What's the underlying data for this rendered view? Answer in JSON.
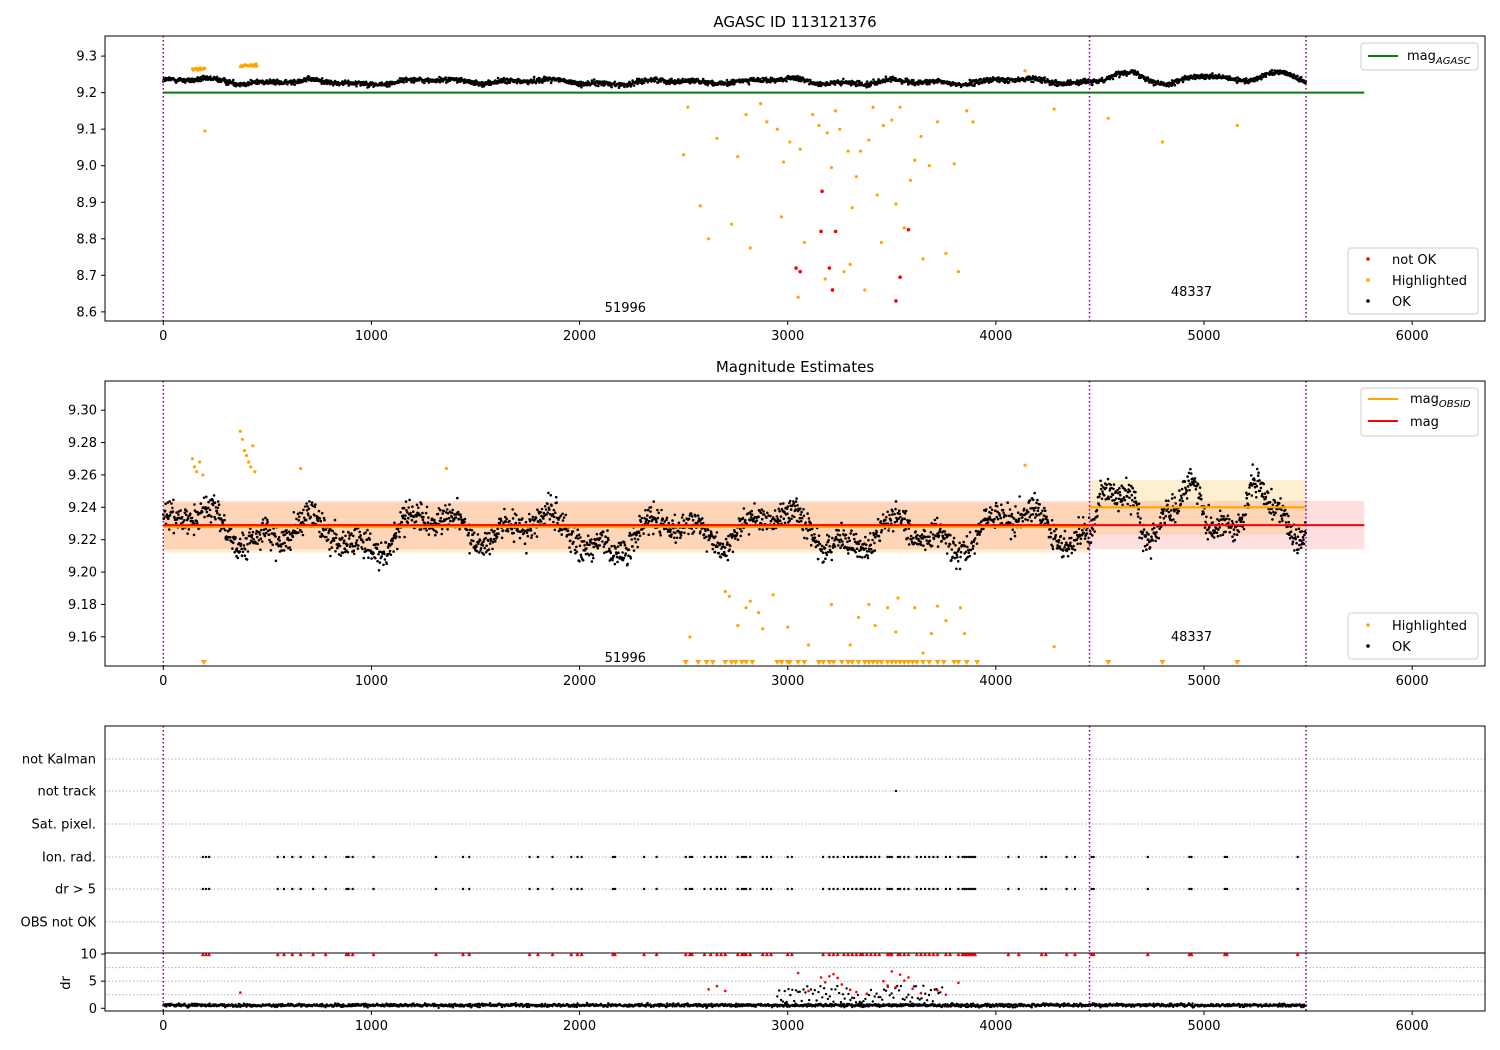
{
  "chart_data": [
    {
      "type": "scatter",
      "title": "AGASC ID 113121376",
      "xlabel": "",
      "ylabel": "",
      "xlim": [
        -280,
        6350
      ],
      "ylim": [
        8.575,
        9.355
      ],
      "xticks": [
        "0",
        "1000",
        "2000",
        "3000",
        "4000",
        "5000",
        "6000"
      ],
      "xtick_values": [
        0,
        1000,
        2000,
        3000,
        4000,
        5000,
        6000
      ],
      "yticks": [
        "8.6",
        "8.7",
        "8.8",
        "8.9",
        "9.0",
        "9.1",
        "9.2",
        "9.3"
      ],
      "ytick_values": [
        8.6,
        8.7,
        8.8,
        8.9,
        9.0,
        9.1,
        9.2,
        9.3
      ],
      "obsid_boundaries": [
        0,
        4450,
        5490
      ],
      "obsid_labels": [
        {
          "text": "51996",
          "x": 2220,
          "y": 8.61
        },
        {
          "text": "48337",
          "x": 4940,
          "y": 8.655
        }
      ],
      "mag_agasc": 9.2,
      "mag_agasc_xrange": [
        0,
        5770
      ],
      "ok_band": {
        "base": 9.23,
        "amp": 0.012
      },
      "series": [
        {
          "name": "not OK",
          "color": "#ff0000",
          "points": [
            [
              3040,
              8.72
            ],
            [
              3060,
              8.71
            ],
            [
              3160,
              8.82
            ],
            [
              3165,
              8.93
            ],
            [
              3200,
              8.72
            ],
            [
              3215,
              8.66
            ],
            [
              3230,
              8.82
            ],
            [
              3520,
              8.63
            ],
            [
              3540,
              8.695
            ],
            [
              3580,
              8.825
            ]
          ]
        },
        {
          "name": "Highlighted",
          "color": "#ffa500",
          "points": [
            [
              200,
              9.095
            ],
            [
              2500,
              9.03
            ],
            [
              2520,
              9.16
            ],
            [
              2580,
              8.89
            ],
            [
              2620,
              8.8
            ],
            [
              2660,
              9.075
            ],
            [
              2730,
              8.84
            ],
            [
              2760,
              9.025
            ],
            [
              2800,
              9.14
            ],
            [
              2820,
              8.775
            ],
            [
              2870,
              9.17
            ],
            [
              2900,
              9.12
            ],
            [
              2950,
              9.1
            ],
            [
              2970,
              8.86
            ],
            [
              2980,
              9.01
            ],
            [
              3010,
              9.065
            ],
            [
              3050,
              8.64
            ],
            [
              3060,
              9.045
            ],
            [
              3080,
              8.79
            ],
            [
              3120,
              9.14
            ],
            [
              3150,
              9.11
            ],
            [
              3180,
              8.69
            ],
            [
              3190,
              9.09
            ],
            [
              3210,
              8.995
            ],
            [
              3230,
              9.15
            ],
            [
              3250,
              9.1
            ],
            [
              3270,
              8.71
            ],
            [
              3290,
              9.04
            ],
            [
              3300,
              8.73
            ],
            [
              3310,
              8.885
            ],
            [
              3330,
              8.97
            ],
            [
              3350,
              9.04
            ],
            [
              3370,
              8.66
            ],
            [
              3390,
              9.07
            ],
            [
              3410,
              9.16
            ],
            [
              3430,
              8.92
            ],
            [
              3450,
              8.79
            ],
            [
              3460,
              9.11
            ],
            [
              3500,
              9.125
            ],
            [
              3520,
              8.895
            ],
            [
              3540,
              9.16
            ],
            [
              3560,
              8.83
            ],
            [
              3590,
              8.96
            ],
            [
              3610,
              9.015
            ],
            [
              3640,
              9.08
            ],
            [
              3650,
              8.745
            ],
            [
              3680,
              9.0
            ],
            [
              3720,
              9.12
            ],
            [
              3760,
              8.76
            ],
            [
              3800,
              9.005
            ],
            [
              3820,
              8.71
            ],
            [
              3860,
              9.15
            ],
            [
              3890,
              9.12
            ],
            [
              4140,
              9.26
            ],
            [
              4280,
              9.155
            ],
            [
              4540,
              9.13
            ],
            [
              4800,
              9.065
            ],
            [
              5160,
              9.11
            ]
          ]
        }
      ],
      "legend_lines": [
        {
          "name": "mag",
          "subscript": "AGASC",
          "color": "#008000"
        }
      ],
      "legend_points": [
        {
          "name": "not OK",
          "color": "#ff0000"
        },
        {
          "name": "Highlighted",
          "color": "#ffa500"
        },
        {
          "name": "OK",
          "color": "#000000"
        }
      ]
    },
    {
      "type": "scatter",
      "title": "Magnitude Estimates",
      "xlabel": "",
      "ylabel": "",
      "xlim": [
        -280,
        6350
      ],
      "ylim": [
        9.142,
        9.318
      ],
      "xticks": [
        "0",
        "1000",
        "2000",
        "3000",
        "4000",
        "5000",
        "6000"
      ],
      "xtick_values": [
        0,
        1000,
        2000,
        3000,
        4000,
        5000,
        6000
      ],
      "yticks": [
        "9.16",
        "9.18",
        "9.20",
        "9.22",
        "9.24",
        "9.26",
        "9.28",
        "9.30"
      ],
      "ytick_values": [
        9.16,
        9.18,
        9.2,
        9.22,
        9.24,
        9.26,
        9.28,
        9.3
      ],
      "obsid_boundaries": [
        0,
        4450,
        5490
      ],
      "obsid_labels": [
        {
          "text": "51996",
          "x": 2220,
          "y": 9.147
        },
        {
          "text": "48337",
          "x": 4940,
          "y": 9.16
        }
      ],
      "mag": 9.229,
      "mag_range": [
        9.214,
        9.244
      ],
      "mag_obsid": [
        {
          "x": [
            0,
            4450
          ],
          "value": 9.228,
          "range": [
            9.212,
            9.243
          ]
        },
        {
          "x": [
            4450,
            5490
          ],
          "value": 9.24,
          "range": [
            9.223,
            9.257
          ]
        }
      ],
      "series": [
        {
          "name": "Highlighted",
          "color": "#ffa500",
          "points": [
            [
              140,
              9.27
            ],
            [
              150,
              9.265
            ],
            [
              160,
              9.262
            ],
            [
              175,
              9.268
            ],
            [
              190,
              9.26
            ],
            [
              370,
              9.287
            ],
            [
              380,
              9.282
            ],
            [
              390,
              9.275
            ],
            [
              400,
              9.272
            ],
            [
              410,
              9.268
            ],
            [
              420,
              9.265
            ],
            [
              430,
              9.278
            ],
            [
              440,
              9.262
            ],
            [
              660,
              9.264
            ],
            [
              1360,
              9.264
            ],
            [
              2530,
              9.16
            ],
            [
              2700,
              9.188
            ],
            [
              2720,
              9.185
            ],
            [
              2760,
              9.167
            ],
            [
              2800,
              9.178
            ],
            [
              2820,
              9.182
            ],
            [
              2860,
              9.175
            ],
            [
              2880,
              9.165
            ],
            [
              2930,
              9.186
            ],
            [
              3000,
              9.166
            ],
            [
              3100,
              9.155
            ],
            [
              3210,
              9.18
            ],
            [
              3300,
              9.155
            ],
            [
              3340,
              9.172
            ],
            [
              3390,
              9.18
            ],
            [
              3420,
              9.167
            ],
            [
              3480,
              9.178
            ],
            [
              3520,
              9.163
            ],
            [
              3530,
              9.184
            ],
            [
              3610,
              9.178
            ],
            [
              3650,
              9.15
            ],
            [
              3690,
              9.162
            ],
            [
              3720,
              9.179
            ],
            [
              3760,
              9.17
            ],
            [
              3830,
              9.178
            ],
            [
              3850,
              9.162
            ],
            [
              4140,
              9.266
            ],
            [
              4280,
              9.154
            ]
          ]
        }
      ],
      "lower_limits": [
        195,
        2510,
        2570,
        2610,
        2640,
        2700,
        2730,
        2750,
        2780,
        2800,
        2830,
        2950,
        2970,
        3000,
        3010,
        3050,
        3080,
        3150,
        3170,
        3200,
        3220,
        3260,
        3290,
        3310,
        3340,
        3370,
        3390,
        3410,
        3430,
        3450,
        3480,
        3500,
        3520,
        3540,
        3560,
        3580,
        3600,
        3620,
        3650,
        3680,
        3720,
        3750,
        3800,
        3820,
        3860,
        3910,
        4540,
        4800,
        5160
      ],
      "legend_lines": [
        {
          "name": "mag",
          "subscript": "OBSID",
          "color": "#ffa500"
        },
        {
          "name": "mag",
          "subscript": "",
          "color": "#ff0000"
        }
      ],
      "legend_points": [
        {
          "name": "Highlighted",
          "color": "#ffa500"
        },
        {
          "name": "OK",
          "color": "#000000"
        }
      ]
    },
    {
      "type": "scatter",
      "title": "",
      "xlabel": "",
      "ylabel": "",
      "xlim": [
        -280,
        6350
      ],
      "categories": [
        "not Kalman",
        "not track",
        "Sat. pixel.",
        "Ion. rad.",
        "dr > 5",
        "OBS not OK"
      ],
      "flags": {
        "not track": [
          3520
        ],
        "Ion. rad.": [
          190,
          205,
          220,
          550,
          580,
          620,
          660,
          720,
          780,
          880,
          890,
          910,
          1010,
          1310,
          1440,
          1470,
          1760,
          1800,
          1870,
          1960,
          1990,
          2010,
          2160,
          2170,
          2310,
          2370,
          2510,
          2530,
          2540,
          2600,
          2630,
          2660,
          2680,
          2700,
          2760,
          2780,
          2790,
          2800,
          2820,
          2880,
          2900,
          2920,
          3000,
          3020,
          3170,
          3200,
          3220,
          3240,
          3270,
          3290,
          3310,
          3330,
          3350,
          3360,
          3380,
          3400,
          3420,
          3440,
          3480,
          3490,
          3500,
          3530,
          3540,
          3560,
          3580,
          3620,
          3640,
          3660,
          3680,
          3700,
          3720,
          3760,
          3780,
          3820,
          3840,
          3850,
          3860,
          3870,
          3880,
          3890,
          3900,
          4060,
          4110,
          4220,
          4240,
          4340,
          4380,
          4460,
          4470,
          4730,
          4930,
          4940,
          5100,
          5110,
          5450
        ]
      },
      "flag_rows_with_ion_pattern": [
        "Ion. rad.",
        "dr > 5"
      ],
      "dr_subplot": {
        "ylabel": "dr",
        "ylim": [
          -0.5,
          10.2
        ],
        "yticks": [
          "0",
          "5",
          "10"
        ],
        "ytick_values": [
          0,
          5,
          10
        ],
        "threshold_marker_y": 10,
        "high_points": [
          [
            370,
            2.9
          ],
          [
            2620,
            3.5
          ],
          [
            2660,
            4.1
          ],
          [
            2700,
            3.2
          ],
          [
            3050,
            6.5
          ],
          [
            3100,
            3.2
          ],
          [
            3160,
            5.7
          ],
          [
            3180,
            4.8
          ],
          [
            3200,
            5.9
          ],
          [
            3220,
            6.3
          ],
          [
            3240,
            5.6
          ],
          [
            3260,
            4.4
          ],
          [
            3300,
            3.4
          ],
          [
            3330,
            3.0
          ],
          [
            3380,
            2.7
          ],
          [
            3460,
            5.0
          ],
          [
            3480,
            4.2
          ],
          [
            3500,
            6.8
          ],
          [
            3520,
            3.9
          ],
          [
            3540,
            6.2
          ],
          [
            3560,
            5.1
          ],
          [
            3580,
            5.7
          ],
          [
            3600,
            3.6
          ],
          [
            3640,
            2.8
          ],
          [
            3720,
            3.3
          ],
          [
            3760,
            2.5
          ],
          [
            3820,
            4.7
          ]
        ]
      }
    }
  ]
}
